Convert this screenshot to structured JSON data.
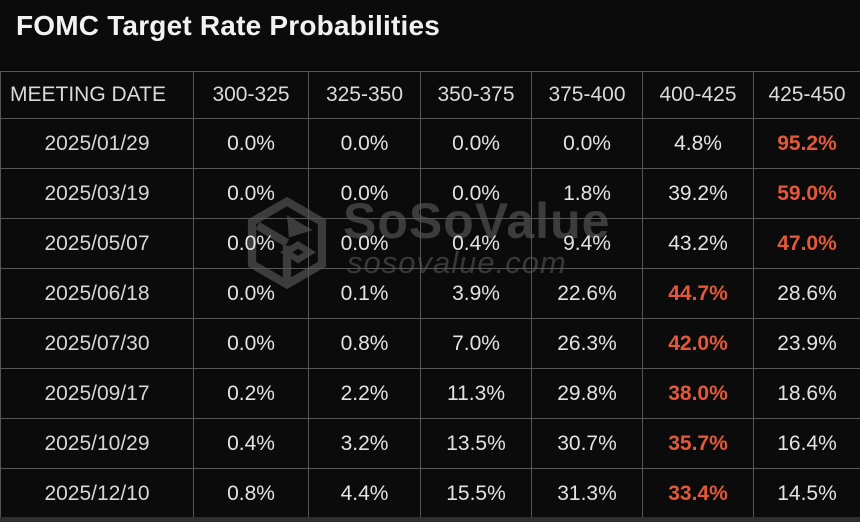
{
  "title": "FOMC Target Rate Probabilities",
  "watermark": {
    "brand": "SoSoValue",
    "domain": "sosovalue.com",
    "logo_icon": "sosovalue-cube-logo-icon"
  },
  "colors": {
    "background": "#0b0b0b",
    "grid": "#565656",
    "text_primary": "#e2e2e2",
    "text_header": "#dadada",
    "highlight": "#e4583a",
    "watermark": "#3c3c3c"
  },
  "chart_data": {
    "type": "table",
    "title": "FOMC Target Rate Probabilities",
    "columns": [
      "MEETING DATE",
      "300-325",
      "325-350",
      "350-375",
      "375-400",
      "400-425",
      "425-450"
    ],
    "rows": [
      {
        "meeting_date": "2025/01/29",
        "probabilities": [
          "0.0%",
          "0.0%",
          "0.0%",
          "0.0%",
          "4.8%",
          "95.2%"
        ],
        "highlight_column": "425-450"
      },
      {
        "meeting_date": "2025/03/19",
        "probabilities": [
          "0.0%",
          "0.0%",
          "0.0%",
          "1.8%",
          "39.2%",
          "59.0%"
        ],
        "highlight_column": "425-450"
      },
      {
        "meeting_date": "2025/05/07",
        "probabilities": [
          "0.0%",
          "0.0%",
          "0.4%",
          "9.4%",
          "43.2%",
          "47.0%"
        ],
        "highlight_column": "425-450"
      },
      {
        "meeting_date": "2025/06/18",
        "probabilities": [
          "0.0%",
          "0.1%",
          "3.9%",
          "22.6%",
          "44.7%",
          "28.6%"
        ],
        "highlight_column": "400-425"
      },
      {
        "meeting_date": "2025/07/30",
        "probabilities": [
          "0.0%",
          "0.8%",
          "7.0%",
          "26.3%",
          "42.0%",
          "23.9%"
        ],
        "highlight_column": "400-425"
      },
      {
        "meeting_date": "2025/09/17",
        "probabilities": [
          "0.2%",
          "2.2%",
          "11.3%",
          "29.8%",
          "38.0%",
          "18.6%"
        ],
        "highlight_column": "400-425"
      },
      {
        "meeting_date": "2025/10/29",
        "probabilities": [
          "0.4%",
          "3.2%",
          "13.5%",
          "30.7%",
          "35.7%",
          "16.4%"
        ],
        "highlight_column": "400-425"
      },
      {
        "meeting_date": "2025/12/10",
        "probabilities": [
          "0.8%",
          "4.4%",
          "15.5%",
          "31.3%",
          "33.4%",
          "14.5%"
        ],
        "highlight_column": "400-425"
      }
    ]
  }
}
